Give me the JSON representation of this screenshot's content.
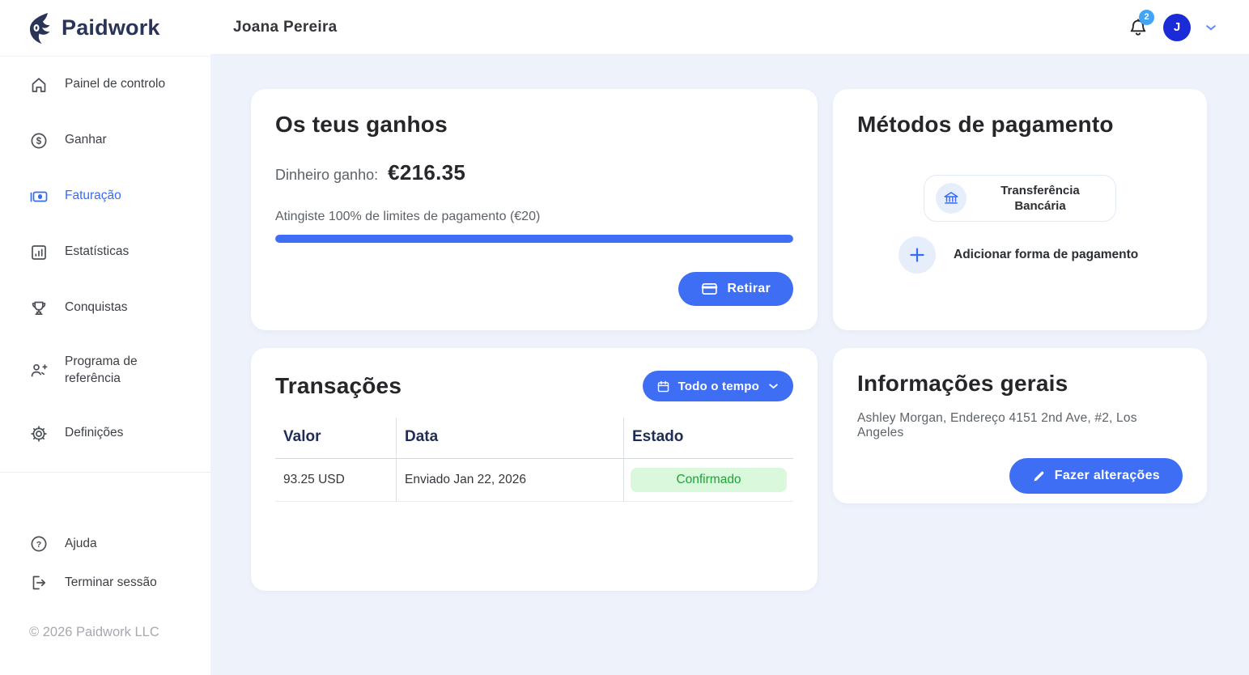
{
  "colors": {
    "primary_blue": "#3e6ef3",
    "avatar_blue": "#1c2bd8",
    "notification_blue": "#41a4f5",
    "navy_text": "#1f2c56",
    "badge_green_bg": "#d9f8dc",
    "badge_green_text": "#1ba534",
    "page_background": "#edf2fb"
  },
  "logo": {
    "text": "Paidwork"
  },
  "header": {
    "user_name": "Joana Pereira",
    "notification_count": "2",
    "avatar_initial": "J"
  },
  "sidebar": {
    "items": [
      {
        "label": "Painel de controlo",
        "icon": "home-icon",
        "active": false
      },
      {
        "label": "Ganhar",
        "icon": "dollar-circle-icon",
        "active": false
      },
      {
        "label": "Faturação",
        "icon": "banknote-icon",
        "active": true
      },
      {
        "label": "Estatísticas",
        "icon": "bar-chart-icon",
        "active": false
      },
      {
        "label": "Conquistas",
        "icon": "trophy-icon",
        "active": false
      },
      {
        "label": "Programa de referência",
        "icon": "user-plus-icon",
        "active": false
      },
      {
        "label": "Definições",
        "icon": "gear-icon",
        "active": false
      }
    ],
    "bottom_items": [
      {
        "label": "Ajuda",
        "icon": "help-circle-icon"
      },
      {
        "label": "Terminar sessão",
        "icon": "logout-icon"
      }
    ],
    "copyright": "© 2026 Paidwork LLC"
  },
  "earnings_card": {
    "title": "Os teus ganhos",
    "earned_label": "Dinheiro ganho:",
    "earned_value": "€216.35",
    "progress_label": "Atingiste 100% de limites de pagamento (€20)",
    "progress_percent": 100,
    "withdraw_label": "Retirar"
  },
  "payment_methods_card": {
    "title": "Métodos de pagamento",
    "method_label": "Transferência Bancária",
    "add_label": "Adicionar forma de pagamento"
  },
  "transactions_card": {
    "title": "Transações",
    "filter_label": "Todo o tempo",
    "columns": [
      "Valor",
      "Data",
      "Estado"
    ],
    "rows": [
      {
        "valor": "93.25 USD",
        "data": "Enviado Jan 22, 2026",
        "estado": "Confirmado"
      }
    ]
  },
  "info_card": {
    "title": "Informações gerais",
    "details": "Ashley Morgan, Endereço 4151 2nd Ave, #2, Los Angeles",
    "edit_label": "Fazer alterações"
  }
}
